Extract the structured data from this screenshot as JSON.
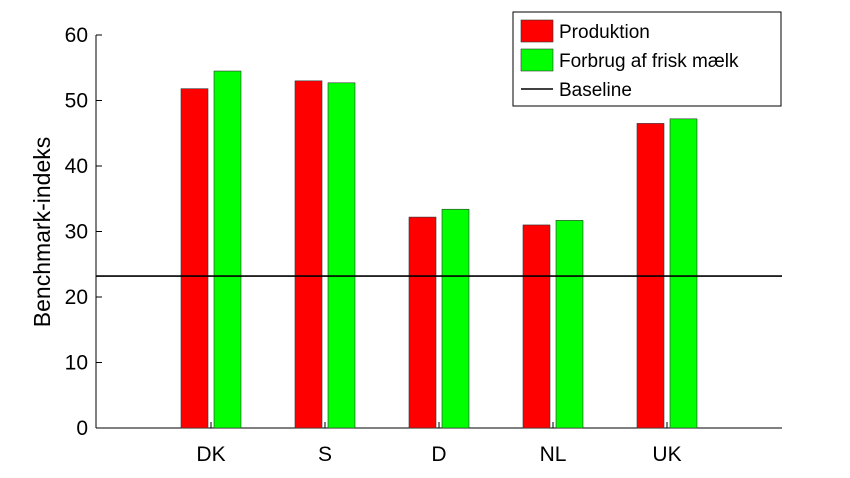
{
  "chart_data": {
    "type": "bar",
    "categories": [
      "DK",
      "S",
      "D",
      "NL",
      "UK"
    ],
    "series": [
      {
        "name": "Produktion",
        "color": "#ff0000",
        "values": [
          51.8,
          53.0,
          32.2,
          31.0,
          46.5
        ]
      },
      {
        "name": "Forbrug af frisk mælk",
        "color": "#00ff00",
        "values": [
          54.5,
          52.7,
          33.4,
          31.7,
          47.2
        ]
      }
    ],
    "baseline": {
      "name": "Baseline",
      "value": 23.2,
      "color": "#000000"
    },
    "ylabel": "Benchmark-indeks",
    "xlabel": "",
    "ylim": [
      0,
      60
    ],
    "yticks": [
      0,
      10,
      20,
      30,
      40,
      50,
      60
    ],
    "grid": false,
    "legend_position": "top-right"
  }
}
